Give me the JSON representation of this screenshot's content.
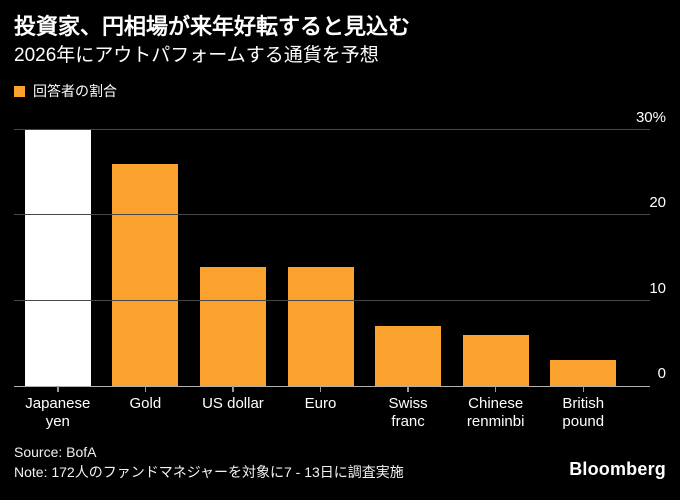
{
  "header": {
    "title": "投資家、円相場が来年好転すると見込む",
    "subtitle": "2026年にアウトパフォームする通貨を予想"
  },
  "legend": {
    "label": "回答者の割合"
  },
  "chart_data": {
    "type": "bar",
    "title": "投資家、円相場が来年好転すると見込む",
    "subtitle": "2026年にアウトパフォームする通貨を予想",
    "legend_entries": [
      "回答者の割合"
    ],
    "categories": [
      "Japanese yen",
      "Gold",
      "US dollar",
      "Euro",
      "Swiss franc",
      "Chinese renminbi",
      "British pound"
    ],
    "category_lines": [
      [
        "Japanese",
        "yen"
      ],
      [
        "Gold"
      ],
      [
        "US dollar"
      ],
      [
        "Euro"
      ],
      [
        "Swiss",
        "franc"
      ],
      [
        "Chinese",
        "renminbi"
      ],
      [
        "British",
        "pound"
      ]
    ],
    "values": [
      30,
      26,
      14,
      14,
      7,
      6,
      3
    ],
    "unit": "%",
    "ylim": [
      0,
      30
    ],
    "yticks": [
      "30%",
      "20",
      "10",
      "0"
    ],
    "ytick_values": [
      30,
      20,
      10,
      0
    ],
    "axis_side": "right",
    "grid": "horizontal",
    "highlighted_category": "Japanese yen",
    "bar_color": "#FAA22D",
    "highlight_color": "#FFFFFF"
  },
  "footer": {
    "source": "Source: BofA",
    "note": "Note: 172人のファンドマネジャーを対象に7 - 13日に調査実施",
    "brand": "Bloomberg"
  },
  "colors": {
    "background": "#000000",
    "accent_orange": "#FAA22D",
    "highlight_white": "#FFFFFF",
    "gridline": "#474747",
    "baseline": "#B3B3B3",
    "text": "#FFFFFF"
  }
}
